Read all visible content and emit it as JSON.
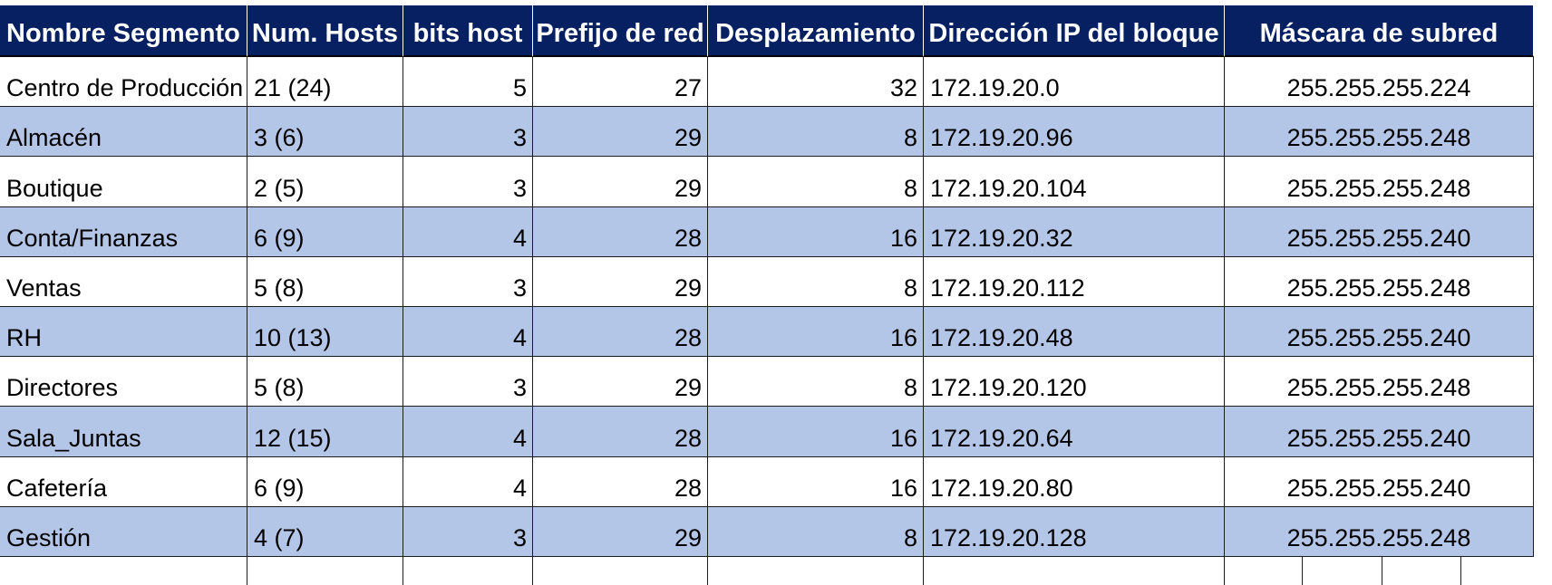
{
  "sheet": {
    "headers": [
      "Nombre Segmento",
      "Num. Hosts",
      "bits host",
      "Prefijo de red",
      "Desplazamiento",
      "Dirección IP del bloque",
      "Máscara de subred"
    ],
    "rows": [
      [
        "Centro de Producción",
        "21 (24)",
        "5",
        "27",
        "32",
        "172.19.20.0",
        "255.255.255.224"
      ],
      [
        "Almacén",
        "3 (6)",
        "3",
        "29",
        "8",
        "172.19.20.96",
        "255.255.255.248"
      ],
      [
        "Boutique",
        "2 (5)",
        "3",
        "29",
        "8",
        "172.19.20.104",
        "255.255.255.248"
      ],
      [
        "Conta/Finanzas",
        "6 (9)",
        "4",
        "28",
        "16",
        "172.19.20.32",
        "255.255.255.240"
      ],
      [
        "Ventas",
        "5 (8)",
        "3",
        "29",
        "8",
        "172.19.20.112",
        "255.255.255.248"
      ],
      [
        "RH",
        "10 (13)",
        "4",
        "28",
        "16",
        "172.19.20.48",
        "255.255.255.240"
      ],
      [
        "Directores",
        "5 (8)",
        "3",
        "29",
        "8",
        "172.19.20.120",
        "255.255.255.248"
      ],
      [
        "Sala_Juntas",
        "12 (15)",
        "4",
        "28",
        "16",
        "172.19.20.64",
        "255.255.255.240"
      ],
      [
        "Cafetería",
        "6 (9)",
        "4",
        "28",
        "16",
        "172.19.20.80",
        "255.255.255.240"
      ],
      [
        "Gestión",
        "4 (7)",
        "3",
        "29",
        "8",
        "172.19.20.128",
        "255.255.255.248"
      ]
    ],
    "colors": {
      "header_bg": "#072061",
      "header_text": "#ffffff",
      "band_bg": "#b4c6e7",
      "grid": "#1c1c1c"
    }
  }
}
